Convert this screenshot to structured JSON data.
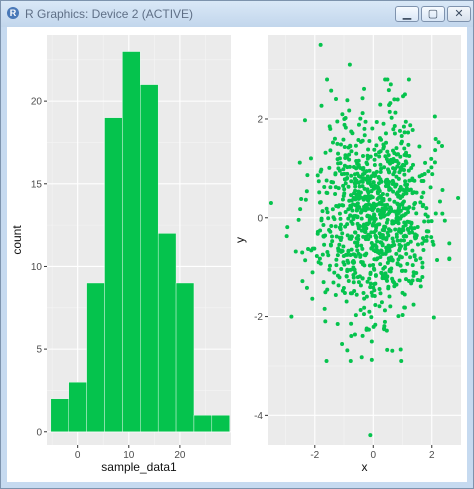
{
  "window": {
    "title": "R Graphics: Device 2 (ACTIVE)",
    "icon": "r-logo-icon",
    "controls": {
      "minimize": "minimize-icon",
      "maximize": "maximize-icon",
      "close": "close-icon"
    }
  },
  "colors": {
    "panel": "#ebebeb",
    "grid": "#ffffff",
    "fill": "#05c34d",
    "text": "#4d4d4d"
  },
  "chart_data": [
    {
      "type": "bar",
      "subtype": "histogram",
      "xlabel": "sample_data1",
      "ylabel": "count",
      "bin_width": 3.5,
      "bins": [
        {
          "x": -3.5,
          "count": 2
        },
        {
          "x": 0,
          "count": 3
        },
        {
          "x": 3.5,
          "count": 9
        },
        {
          "x": 7,
          "count": 19
        },
        {
          "x": 10.5,
          "count": 23
        },
        {
          "x": 14,
          "count": 21
        },
        {
          "x": 17.5,
          "count": 12
        },
        {
          "x": 21,
          "count": 9
        },
        {
          "x": 24.5,
          "count": 1
        },
        {
          "x": 28,
          "count": 1
        }
      ],
      "xlim": [
        -6,
        30
      ],
      "ylim": [
        -0.8,
        24
      ],
      "xticks": [
        0,
        10,
        20
      ],
      "yticks": [
        0,
        5,
        10,
        15,
        20
      ],
      "grid": true
    },
    {
      "type": "scatter",
      "xlabel": "x",
      "ylabel": "y",
      "xlim": [
        -3.6,
        3.0
      ],
      "ylim": [
        -4.6,
        3.7
      ],
      "xticks": [
        -2,
        0,
        2
      ],
      "yticks": [
        -4,
        -2,
        0,
        2
      ],
      "grid": true,
      "approx_n": 1000,
      "distribution": "bivariate standard normal",
      "notable_points": [
        {
          "x": -1.8,
          "y": 3.5
        },
        {
          "x": -0.8,
          "y": 3.1
        },
        {
          "x": 0.6,
          "y": 2.7
        },
        {
          "x": -0.1,
          "y": -4.4
        },
        {
          "x": -3.5,
          "y": 0.3
        },
        {
          "x": 2.9,
          "y": 0.4
        },
        {
          "x": -2.8,
          "y": -2.0
        }
      ]
    }
  ]
}
